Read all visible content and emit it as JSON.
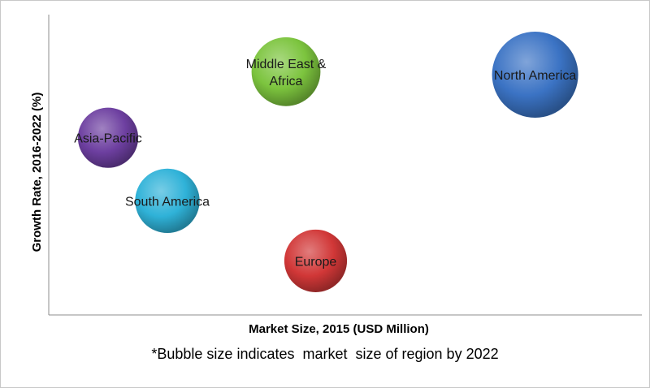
{
  "chart_data": {
    "type": "bubble",
    "xlabel": "Market Size, 2015 (USD Million)",
    "ylabel": "Growth Rate, 2016-2022 (%)",
    "grid": false,
    "legend": "none",
    "bubbles": [
      {
        "label_lines": [
          "North America"
        ],
        "x": 0.82,
        "y": 0.8,
        "size": 1.0,
        "color": "#3b73c4"
      },
      {
        "label_lines": [
          "Middle East &",
          "Africa"
        ],
        "x": 0.4,
        "y": 0.81,
        "size": 0.64,
        "color": "#7cc43e"
      },
      {
        "label_lines": [
          "Asia-Pacific"
        ],
        "x": 0.1,
        "y": 0.59,
        "size": 0.49,
        "color": "#6d3fa0"
      },
      {
        "label_lines": [
          "South America"
        ],
        "x": 0.2,
        "y": 0.38,
        "size": 0.56,
        "color": "#2fb2d8"
      },
      {
        "label_lines": [
          "Europe"
        ],
        "x": 0.45,
        "y": 0.18,
        "size": 0.53,
        "color": "#d13737"
      }
    ]
  },
  "footnote": "*Bubble size indicates  market  size of region by 2022"
}
